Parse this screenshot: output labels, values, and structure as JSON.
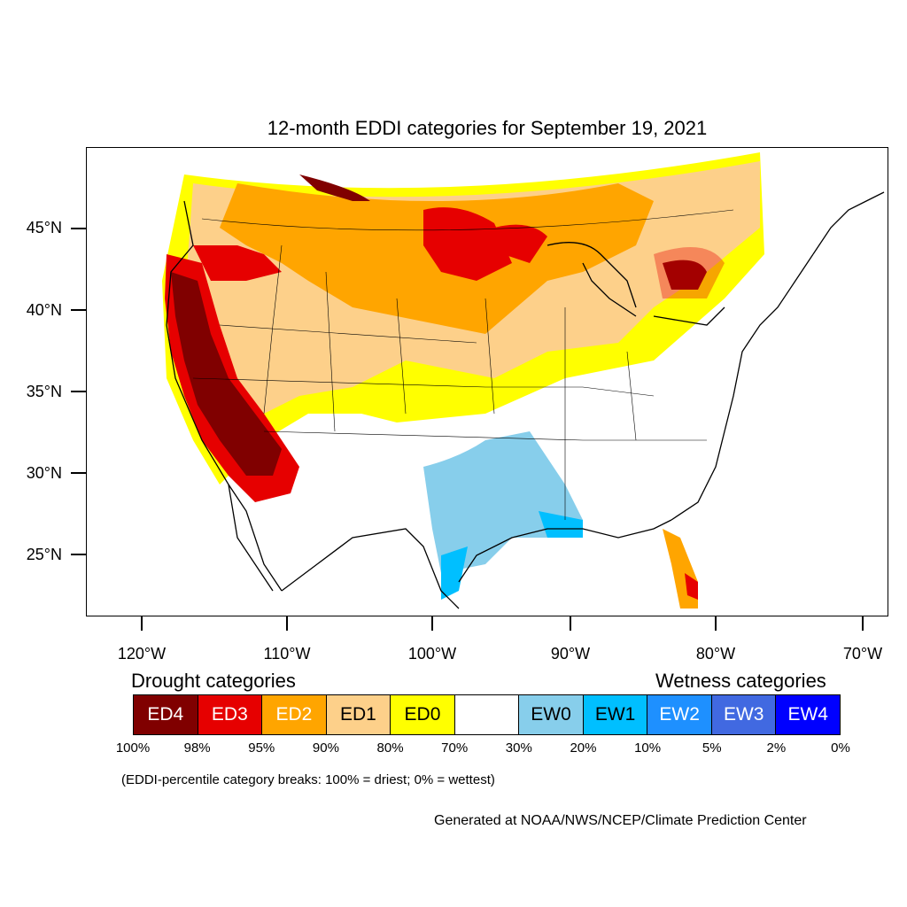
{
  "title": "12-month EDDI categories for September 19, 2021",
  "map": {
    "projection": "lambert-conformal",
    "region": "Contiguous United States",
    "lat_labels": [
      "45°N",
      "40°N",
      "35°N",
      "30°N",
      "25°N"
    ],
    "lon_labels": [
      "120°W",
      "110°W",
      "100°W",
      "90°W",
      "80°W",
      "70°W"
    ]
  },
  "legend": {
    "drought_heading": "Drought categories",
    "wetness_heading": "Wetness categories",
    "categories": [
      {
        "label": "ED4",
        "color": "#800000",
        "text_color": "#ffffff"
      },
      {
        "label": "ED3",
        "color": "#e60000",
        "text_color": "#ffffff"
      },
      {
        "label": "ED2",
        "color": "#ffa500",
        "text_color": "#ffffff"
      },
      {
        "label": "ED1",
        "color": "#fdd08a",
        "text_color": "#000000"
      },
      {
        "label": "ED0",
        "color": "#ffff00",
        "text_color": "#000000"
      },
      {
        "label": "",
        "color": "#ffffff",
        "text_color": "#000000"
      },
      {
        "label": "EW0",
        "color": "#87ceeb",
        "text_color": "#000000"
      },
      {
        "label": "EW1",
        "color": "#00bfff",
        "text_color": "#000000"
      },
      {
        "label": "EW2",
        "color": "#1e90ff",
        "text_color": "#ffffff"
      },
      {
        "label": "EW3",
        "color": "#4169e1",
        "text_color": "#ffffff"
      },
      {
        "label": "EW4",
        "color": "#0000ff",
        "text_color": "#ffffff"
      }
    ],
    "breaks": [
      "100%",
      "98%",
      "95%",
      "90%",
      "80%",
      "70%",
      "30%",
      "20%",
      "10%",
      "5%",
      "2%",
      "0%"
    ]
  },
  "note": "(EDDI-percentile category breaks: 100% = driest; 0% = wettest)",
  "credit": "Generated at NOAA/NWS/NCEP/Climate Prediction Center"
}
